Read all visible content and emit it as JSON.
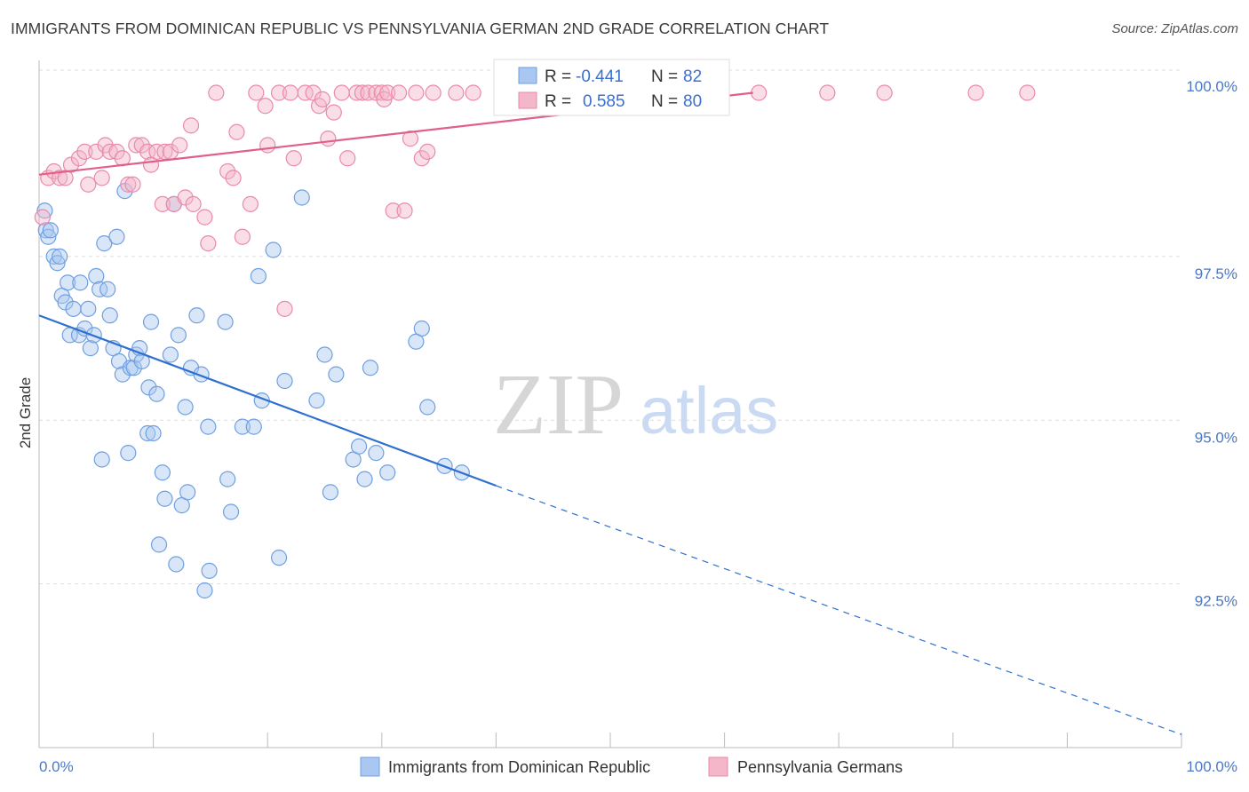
{
  "title": "IMMIGRANTS FROM DOMINICAN REPUBLIC VS PENNSYLVANIA GERMAN 2ND GRADE CORRELATION CHART",
  "source": "Source: ZipAtlas.com",
  "watermark": {
    "zip": "ZIP",
    "atlas": "atlas"
  },
  "colors": {
    "blue_fill": "#a9c7f0",
    "blue_stroke": "#6f9fe0",
    "blue_line": "#2e6fd0",
    "pink_fill": "#f4b6c9",
    "pink_stroke": "#e88aa8",
    "pink_line": "#e0608a",
    "tick_text": "#4a78c8",
    "grid": "#dddddd"
  },
  "legend": {
    "series": [
      {
        "r_label": "R =",
        "r_value": "-0.441",
        "n_label": "N =",
        "n_value": "82"
      },
      {
        "r_label": "R =",
        "r_value": "0.585",
        "n_label": "N =",
        "n_value": "80"
      }
    ]
  },
  "chart_data": {
    "type": "scatter",
    "xlabel": "",
    "ylabel": "2nd Grade",
    "xlim": [
      0,
      100
    ],
    "ylim": [
      90.0,
      100.4
    ],
    "x_tick_labels": [
      "0.0%",
      "100.0%"
    ],
    "y_ticks": [
      92.5,
      95.0,
      97.5,
      100.0
    ],
    "y_tick_labels": [
      "92.5%",
      "95.0%",
      "97.5%",
      "100.0%"
    ],
    "grid": true,
    "series": [
      {
        "name": "Immigrants from Dominican Republic",
        "color": "#a9c7f0",
        "trend": {
          "x": [
            0,
            40
          ],
          "y": [
            96.6,
            94.0
          ],
          "dashed_to": [
            100,
            90.2
          ]
        },
        "points": [
          [
            0.5,
            98.2
          ],
          [
            0.6,
            97.9
          ],
          [
            0.8,
            97.8
          ],
          [
            1.0,
            97.9
          ],
          [
            1.3,
            97.5
          ],
          [
            1.6,
            97.4
          ],
          [
            1.8,
            97.5
          ],
          [
            2.0,
            96.9
          ],
          [
            2.3,
            96.8
          ],
          [
            2.5,
            97.1
          ],
          [
            2.7,
            96.3
          ],
          [
            3.0,
            96.7
          ],
          [
            3.5,
            96.3
          ],
          [
            3.6,
            97.1
          ],
          [
            4.0,
            96.4
          ],
          [
            4.3,
            96.7
          ],
          [
            4.5,
            96.1
          ],
          [
            4.8,
            96.3
          ],
          [
            5.0,
            97.2
          ],
          [
            5.3,
            97.0
          ],
          [
            5.5,
            94.4
          ],
          [
            5.7,
            97.7
          ],
          [
            6.0,
            97.0
          ],
          [
            6.2,
            96.6
          ],
          [
            6.5,
            96.1
          ],
          [
            6.8,
            97.8
          ],
          [
            7.0,
            95.9
          ],
          [
            7.3,
            95.7
          ],
          [
            7.5,
            98.5
          ],
          [
            7.8,
            94.5
          ],
          [
            8.0,
            95.8
          ],
          [
            8.3,
            95.8
          ],
          [
            8.5,
            96.0
          ],
          [
            8.8,
            96.1
          ],
          [
            9.0,
            95.9
          ],
          [
            9.5,
            94.8
          ],
          [
            9.6,
            95.5
          ],
          [
            9.8,
            96.5
          ],
          [
            10.0,
            94.8
          ],
          [
            10.3,
            95.4
          ],
          [
            10.5,
            93.1
          ],
          [
            10.8,
            94.2
          ],
          [
            11.0,
            93.8
          ],
          [
            11.5,
            96.0
          ],
          [
            11.8,
            98.3
          ],
          [
            12.0,
            92.8
          ],
          [
            12.2,
            96.3
          ],
          [
            12.5,
            93.7
          ],
          [
            12.8,
            95.2
          ],
          [
            13.0,
            93.9
          ],
          [
            13.3,
            95.8
          ],
          [
            13.8,
            96.6
          ],
          [
            14.2,
            95.7
          ],
          [
            14.5,
            92.4
          ],
          [
            14.8,
            94.9
          ],
          [
            14.9,
            92.7
          ],
          [
            16.3,
            96.5
          ],
          [
            16.5,
            94.1
          ],
          [
            16.8,
            93.6
          ],
          [
            17.8,
            94.9
          ],
          [
            18.8,
            94.9
          ],
          [
            19.2,
            97.2
          ],
          [
            19.5,
            95.3
          ],
          [
            20.5,
            97.6
          ],
          [
            21.0,
            92.9
          ],
          [
            21.5,
            95.6
          ],
          [
            23.0,
            98.4
          ],
          [
            24.3,
            95.3
          ],
          [
            25.0,
            96.0
          ],
          [
            25.5,
            93.9
          ],
          [
            26.0,
            95.7
          ],
          [
            27.5,
            94.4
          ],
          [
            28.0,
            94.6
          ],
          [
            28.5,
            94.1
          ],
          [
            29.0,
            95.8
          ],
          [
            29.5,
            94.5
          ],
          [
            30.5,
            94.2
          ],
          [
            33.0,
            96.2
          ],
          [
            33.5,
            96.4
          ],
          [
            34.0,
            95.2
          ],
          [
            35.5,
            94.3
          ],
          [
            37.0,
            94.2
          ]
        ]
      },
      {
        "name": "Pennsylvania Germans",
        "color": "#f4b6c9",
        "trend": {
          "x": [
            0,
            62.5
          ],
          "y": [
            98.75,
            100.0
          ]
        },
        "points": [
          [
            0.3,
            98.1
          ],
          [
            0.8,
            98.7
          ],
          [
            1.3,
            98.8
          ],
          [
            1.8,
            98.7
          ],
          [
            2.3,
            98.7
          ],
          [
            2.8,
            98.9
          ],
          [
            3.5,
            99.0
          ],
          [
            4.0,
            99.1
          ],
          [
            4.3,
            98.6
          ],
          [
            5.0,
            99.1
          ],
          [
            5.5,
            98.7
          ],
          [
            5.8,
            99.2
          ],
          [
            6.2,
            99.1
          ],
          [
            6.8,
            99.1
          ],
          [
            7.3,
            99.0
          ],
          [
            7.8,
            98.6
          ],
          [
            8.2,
            98.6
          ],
          [
            8.5,
            99.2
          ],
          [
            9.0,
            99.2
          ],
          [
            9.5,
            99.1
          ],
          [
            9.8,
            98.9
          ],
          [
            10.3,
            99.1
          ],
          [
            10.8,
            98.3
          ],
          [
            11.0,
            99.1
          ],
          [
            11.5,
            99.1
          ],
          [
            11.8,
            98.3
          ],
          [
            12.3,
            99.2
          ],
          [
            12.8,
            98.4
          ],
          [
            13.3,
            99.5
          ],
          [
            13.5,
            98.3
          ],
          [
            14.5,
            98.1
          ],
          [
            14.8,
            97.7
          ],
          [
            15.5,
            100.0
          ],
          [
            16.5,
            98.8
          ],
          [
            17.0,
            98.7
          ],
          [
            17.3,
            99.4
          ],
          [
            17.8,
            97.8
          ],
          [
            18.5,
            98.3
          ],
          [
            19.0,
            100.0
          ],
          [
            19.8,
            99.8
          ],
          [
            20.0,
            99.2
          ],
          [
            21.0,
            100.0
          ],
          [
            21.5,
            96.7
          ],
          [
            22.0,
            100.0
          ],
          [
            22.3,
            99.0
          ],
          [
            23.3,
            100.0
          ],
          [
            24.0,
            100.0
          ],
          [
            24.5,
            99.8
          ],
          [
            24.8,
            99.9
          ],
          [
            25.3,
            99.3
          ],
          [
            25.8,
            99.7
          ],
          [
            26.5,
            100.0
          ],
          [
            27.0,
            99.0
          ],
          [
            27.8,
            100.0
          ],
          [
            28.3,
            100.0
          ],
          [
            28.8,
            100.0
          ],
          [
            29.5,
            100.0
          ],
          [
            30.0,
            100.0
          ],
          [
            30.2,
            99.9
          ],
          [
            30.5,
            100.0
          ],
          [
            31.0,
            98.2
          ],
          [
            31.5,
            100.0
          ],
          [
            32.0,
            98.2
          ],
          [
            32.5,
            99.3
          ],
          [
            33.0,
            100.0
          ],
          [
            33.5,
            99.0
          ],
          [
            34.0,
            99.1
          ],
          [
            34.5,
            100.0
          ],
          [
            36.5,
            100.0
          ],
          [
            38.0,
            100.0
          ],
          [
            42.0,
            100.0
          ],
          [
            47.0,
            100.0
          ],
          [
            52.0,
            100.0
          ],
          [
            54.0,
            100.0
          ],
          [
            58.0,
            100.0
          ],
          [
            63.0,
            100.0
          ],
          [
            69.0,
            100.0
          ],
          [
            74.0,
            100.0
          ],
          [
            82.0,
            100.0
          ],
          [
            86.5,
            100.0
          ]
        ]
      }
    ]
  }
}
